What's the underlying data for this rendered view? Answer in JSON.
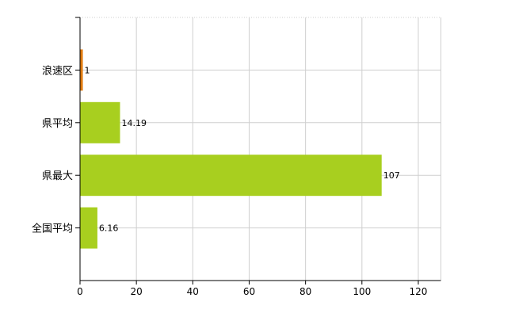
{
  "chart_data": {
    "type": "bar",
    "orientation": "horizontal",
    "categories": [
      "浪速区",
      "県平均",
      "県最大",
      "全国平均"
    ],
    "values": [
      1,
      14.19,
      107,
      6.16
    ],
    "data_labels": [
      "1",
      "14.19",
      "107",
      "6.16"
    ],
    "colors": [
      "#e07b10",
      "#a8cf1f",
      "#a8cf1f",
      "#a8cf1f"
    ],
    "xlim": [
      0,
      128
    ],
    "x_ticks": [
      0,
      20,
      40,
      60,
      80,
      100,
      120
    ],
    "x_tick_labels": [
      "0",
      "20",
      "40",
      "60",
      "80",
      "100",
      "120"
    ],
    "grid": true,
    "title": "",
    "xlabel": "",
    "ylabel": ""
  }
}
